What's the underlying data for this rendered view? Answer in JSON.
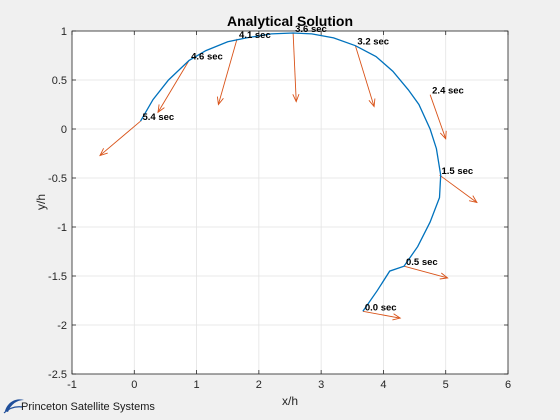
{
  "chart_data": {
    "type": "line",
    "title": "Analytical Solution",
    "xlabel": "x/h",
    "ylabel": "y/h",
    "xlim": [
      -1,
      6
    ],
    "ylim": [
      -2.5,
      1
    ],
    "xticks": [
      "-1",
      "0",
      "1",
      "2",
      "3",
      "4",
      "5",
      "6"
    ],
    "yticks": [
      "-2.5",
      "-2",
      "-1.5",
      "-1",
      "-0.5",
      "0",
      "0.5",
      "1"
    ],
    "grid": true,
    "series_color": "#0072bd",
    "vector_color": "#d95319",
    "trajectory": {
      "x": [
        3.67,
        3.9,
        4.1,
        4.33,
        4.55,
        4.75,
        4.9,
        4.92,
        4.85,
        4.75,
        4.57,
        4.4,
        4.15,
        3.88,
        3.55,
        3.2,
        2.85,
        2.55,
        2.2,
        1.8,
        1.5,
        1.15,
        0.88,
        0.55,
        0.3,
        0.1
      ],
      "y": [
        -1.86,
        -1.65,
        -1.45,
        -1.4,
        -1.2,
        -0.95,
        -0.7,
        -0.47,
        -0.2,
        0.0,
        0.25,
        0.4,
        0.59,
        0.74,
        0.85,
        0.93,
        0.97,
        0.98,
        0.97,
        0.93,
        0.89,
        0.8,
        0.7,
        0.5,
        0.3,
        0.08
      ]
    },
    "markers": [
      {
        "label": "0.0 sec",
        "x": 3.67,
        "y": -1.86,
        "vx": 0.6,
        "vy": -0.07
      },
      {
        "label": "0.5 sec",
        "x": 4.33,
        "y": -1.4,
        "vx": 0.7,
        "vy": -0.12
      },
      {
        "label": "1.5 sec",
        "x": 4.9,
        "y": -0.47,
        "vx": 0.6,
        "vy": -0.28
      },
      {
        "label": "2.4 sec",
        "x": 4.75,
        "y": 0.35,
        "vx": 0.25,
        "vy": -0.45
      },
      {
        "label": "3.2 sec",
        "x": 3.55,
        "y": 0.85,
        "vx": 0.3,
        "vy": -0.62
      },
      {
        "label": "3.6 sec",
        "x": 2.55,
        "y": 0.98,
        "vx": 0.05,
        "vy": -0.7
      },
      {
        "label": "4.1 sec",
        "x": 1.65,
        "y": 0.92,
        "vx": -0.3,
        "vy": -0.67
      },
      {
        "label": "4.6 sec",
        "x": 0.88,
        "y": 0.7,
        "vx": -0.5,
        "vy": -0.53
      },
      {
        "label": "5.4 sec",
        "x": 0.1,
        "y": 0.08,
        "vx": -0.65,
        "vy": -0.35
      }
    ]
  },
  "logo": {
    "text": "Princeton Satellite Systems"
  }
}
